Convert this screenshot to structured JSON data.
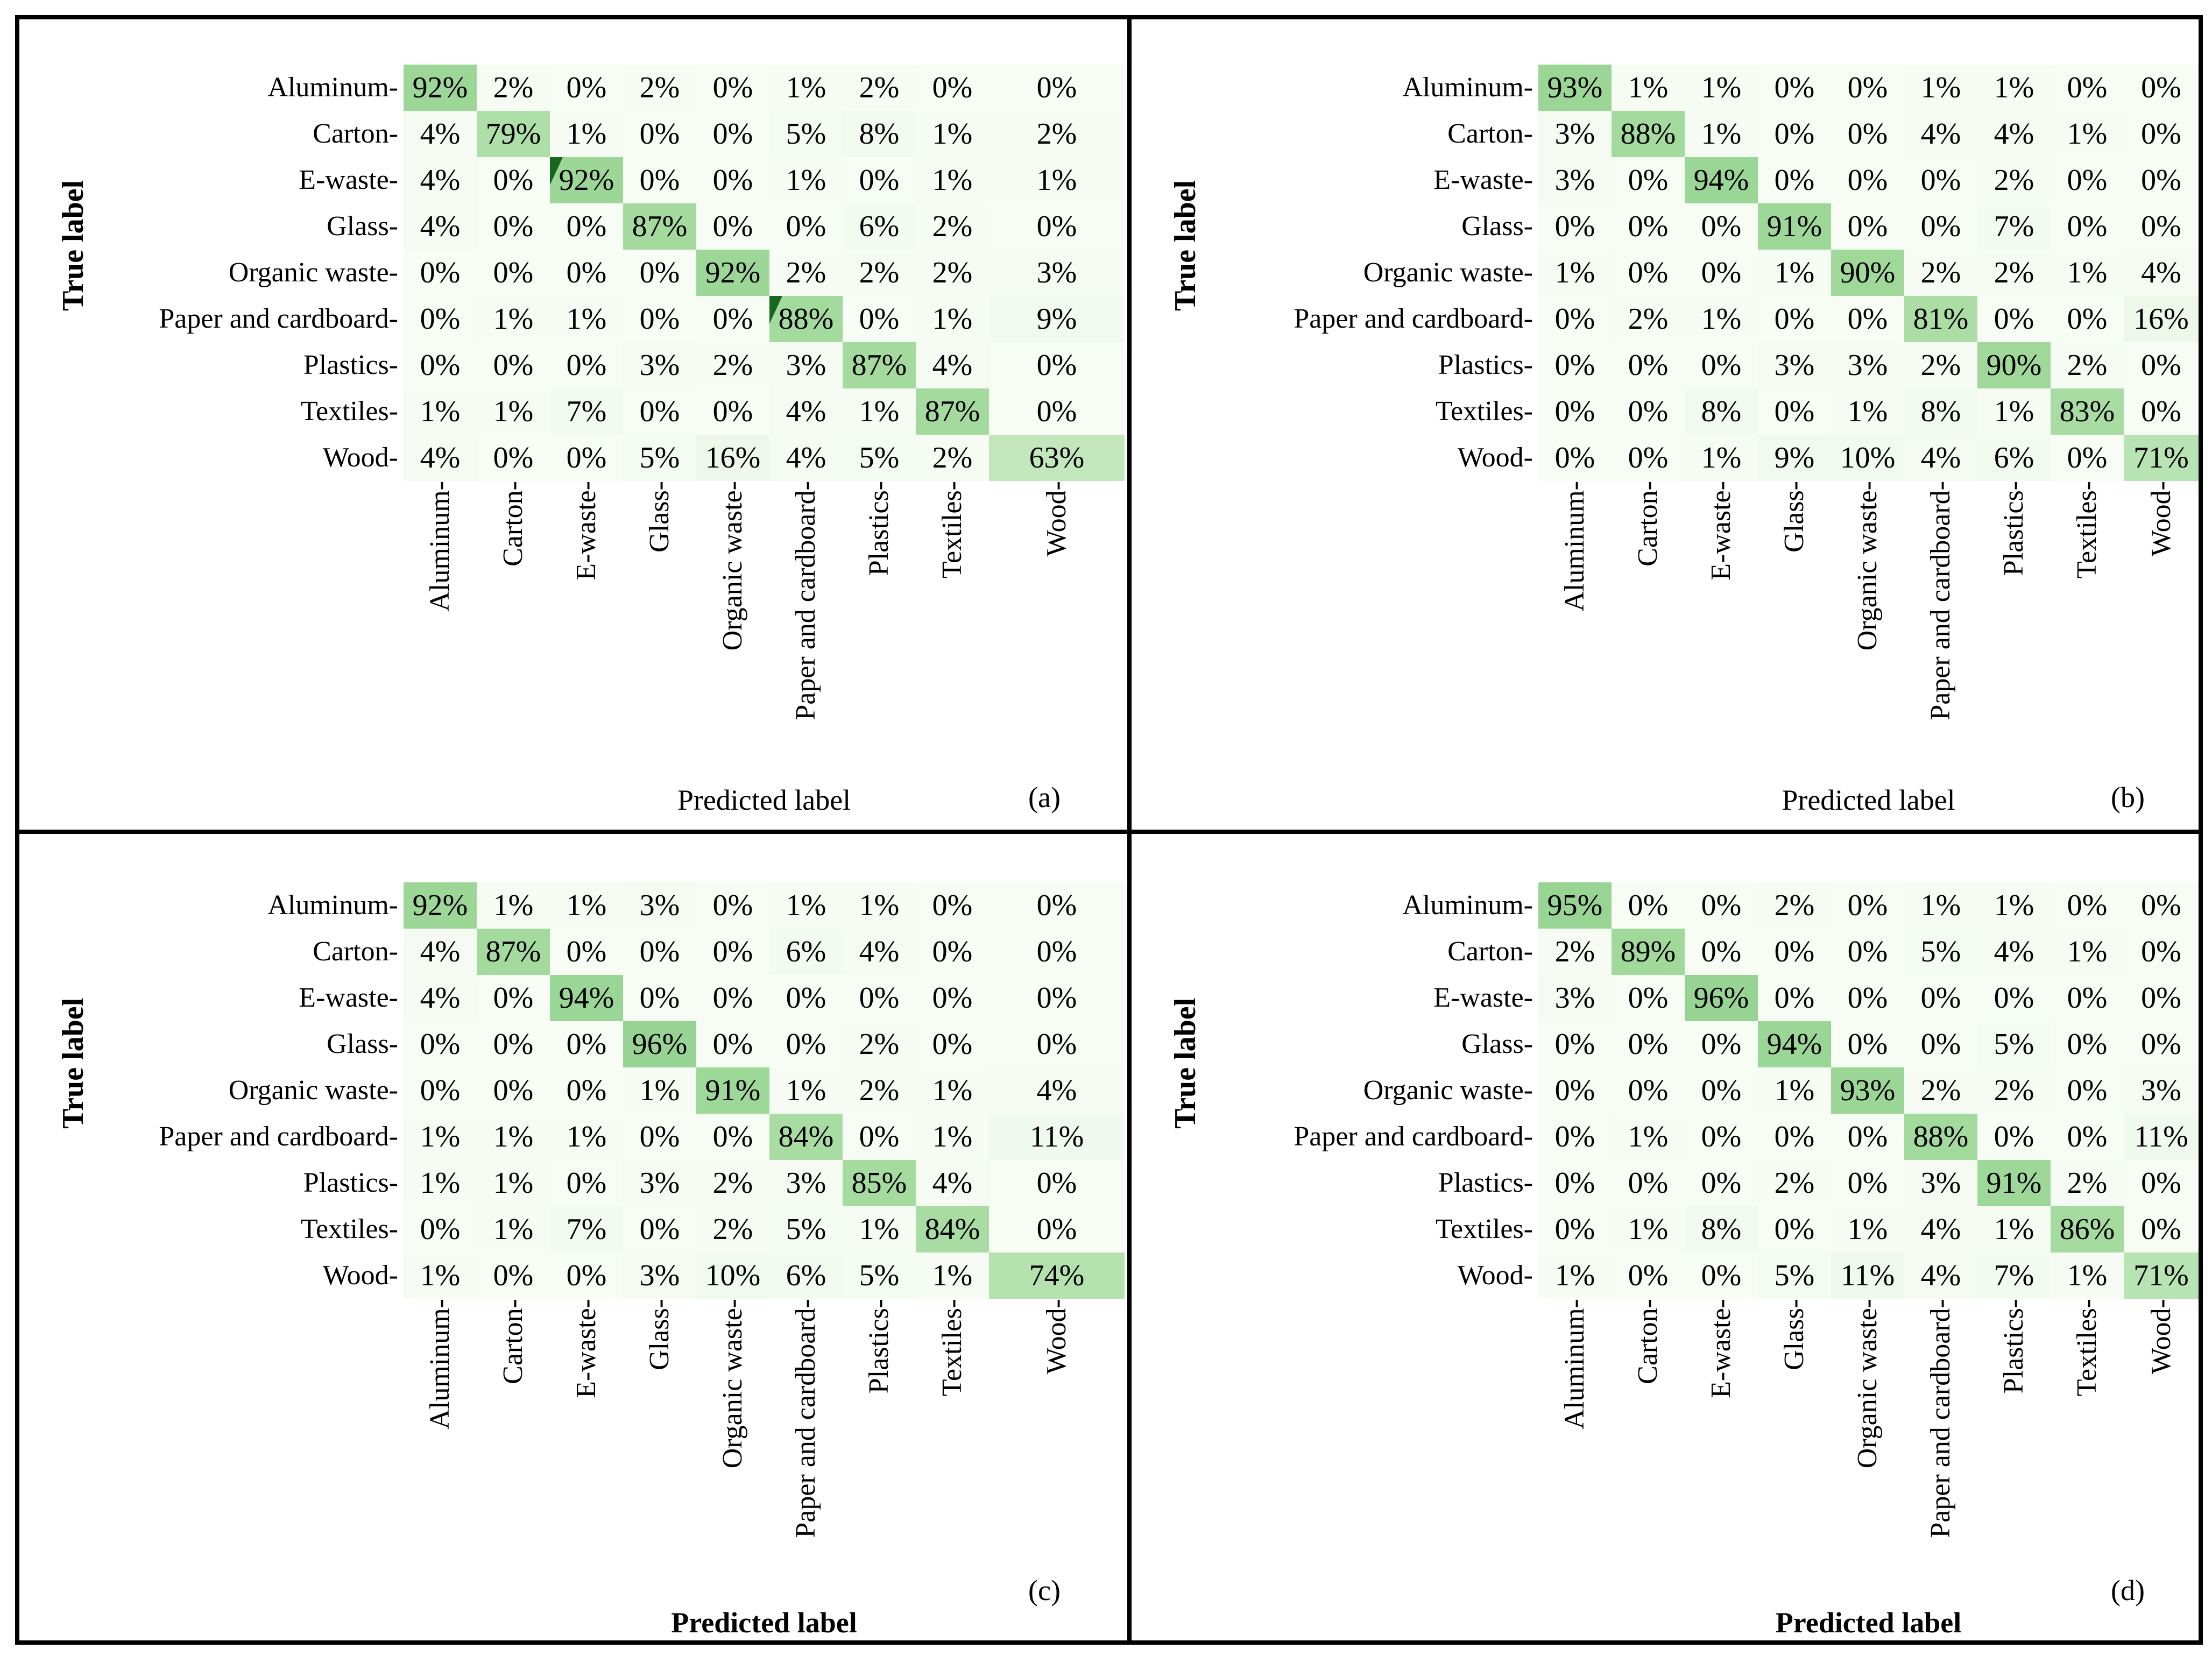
{
  "figure": {
    "background": "#ffffff",
    "border_color": "#000000",
    "diagonal_green": "#9dd798",
    "colormap": "Greens",
    "tick_suffix": "-"
  },
  "chart_data": [
    {
      "type": "heatmap",
      "panel_label": "(a)",
      "xlabel": "Predicted label",
      "ylabel": "True label",
      "value_suffix": "%",
      "categories": [
        "Aluminum",
        "Carton",
        "E-waste",
        "Glass",
        "Organic waste",
        "Paper and cardboard",
        "Plastics",
        "Textiles",
        "Wood"
      ],
      "matrix": [
        [
          92,
          2,
          0,
          2,
          0,
          1,
          2,
          0,
          0
        ],
        [
          4,
          79,
          1,
          0,
          0,
          5,
          8,
          1,
          2
        ],
        [
          4,
          0,
          92,
          0,
          0,
          1,
          0,
          1,
          1
        ],
        [
          4,
          0,
          0,
          87,
          0,
          0,
          6,
          2,
          0
        ],
        [
          0,
          0,
          0,
          0,
          92,
          2,
          2,
          2,
          3
        ],
        [
          0,
          1,
          1,
          0,
          0,
          88,
          0,
          1,
          9
        ],
        [
          0,
          0,
          0,
          3,
          2,
          3,
          87,
          4,
          0
        ],
        [
          1,
          1,
          7,
          0,
          0,
          4,
          1,
          87,
          0
        ],
        [
          4,
          0,
          0,
          5,
          16,
          4,
          5,
          2,
          63
        ]
      ],
      "corner_marks": [
        2,
        5
      ],
      "value_range": [
        0,
        100
      ]
    },
    {
      "type": "heatmap",
      "panel_label": "(b)",
      "xlabel": "Predicted label",
      "ylabel": "True label",
      "value_suffix": "%",
      "categories": [
        "Aluminum",
        "Carton",
        "E-waste",
        "Glass",
        "Organic waste",
        "Paper and cardboard",
        "Plastics",
        "Textiles",
        "Wood"
      ],
      "matrix": [
        [
          93,
          1,
          1,
          0,
          0,
          1,
          1,
          0,
          0
        ],
        [
          3,
          88,
          1,
          0,
          0,
          4,
          4,
          1,
          0
        ],
        [
          3,
          0,
          94,
          0,
          0,
          0,
          2,
          0,
          0
        ],
        [
          0,
          0,
          0,
          91,
          0,
          0,
          7,
          0,
          0
        ],
        [
          1,
          0,
          0,
          1,
          90,
          2,
          2,
          1,
          4
        ],
        [
          0,
          2,
          1,
          0,
          0,
          81,
          0,
          0,
          16
        ],
        [
          0,
          0,
          0,
          3,
          3,
          2,
          90,
          2,
          0
        ],
        [
          0,
          0,
          8,
          0,
          1,
          8,
          1,
          83,
          0
        ],
        [
          0,
          0,
          1,
          9,
          10,
          4,
          6,
          0,
          71
        ]
      ],
      "corner_marks": [],
      "value_range": [
        0,
        100
      ]
    },
    {
      "type": "heatmap",
      "panel_label": "(c)",
      "xlabel": "Predicted label",
      "ylabel": "True label",
      "value_suffix": "%",
      "categories": [
        "Aluminum",
        "Carton",
        "E-waste",
        "Glass",
        "Organic waste",
        "Paper and cardboard",
        "Plastics",
        "Textiles",
        "Wood"
      ],
      "matrix": [
        [
          92,
          1,
          1,
          3,
          0,
          1,
          1,
          0,
          0
        ],
        [
          4,
          87,
          0,
          0,
          0,
          6,
          4,
          0,
          0
        ],
        [
          4,
          0,
          94,
          0,
          0,
          0,
          0,
          0,
          0
        ],
        [
          0,
          0,
          0,
          96,
          0,
          0,
          2,
          0,
          0
        ],
        [
          0,
          0,
          0,
          1,
          91,
          1,
          2,
          1,
          4
        ],
        [
          1,
          1,
          1,
          0,
          0,
          84,
          0,
          1,
          11
        ],
        [
          1,
          1,
          0,
          3,
          2,
          3,
          85,
          4,
          0
        ],
        [
          0,
          1,
          7,
          0,
          2,
          5,
          1,
          84,
          0
        ],
        [
          1,
          0,
          0,
          3,
          10,
          6,
          5,
          1,
          74
        ]
      ],
      "corner_marks": [],
      "value_range": [
        0,
        100
      ]
    },
    {
      "type": "heatmap",
      "panel_label": "(d)",
      "xlabel": "Predicted label",
      "ylabel": "True label",
      "value_suffix": "%",
      "categories": [
        "Aluminum",
        "Carton",
        "E-waste",
        "Glass",
        "Organic waste",
        "Paper and cardboard",
        "Plastics",
        "Textiles",
        "Wood"
      ],
      "matrix": [
        [
          95,
          0,
          0,
          2,
          0,
          1,
          1,
          0,
          0
        ],
        [
          2,
          89,
          0,
          0,
          0,
          5,
          4,
          1,
          0
        ],
        [
          3,
          0,
          96,
          0,
          0,
          0,
          0,
          0,
          0
        ],
        [
          0,
          0,
          0,
          94,
          0,
          0,
          5,
          0,
          0
        ],
        [
          0,
          0,
          0,
          1,
          93,
          2,
          2,
          0,
          3
        ],
        [
          0,
          1,
          0,
          0,
          0,
          88,
          0,
          0,
          11
        ],
        [
          0,
          0,
          0,
          2,
          0,
          3,
          91,
          2,
          0
        ],
        [
          0,
          1,
          8,
          0,
          1,
          4,
          1,
          86,
          0
        ],
        [
          1,
          0,
          0,
          5,
          11,
          4,
          7,
          1,
          71
        ]
      ],
      "corner_marks": [],
      "value_range": [
        0,
        100
      ]
    }
  ]
}
